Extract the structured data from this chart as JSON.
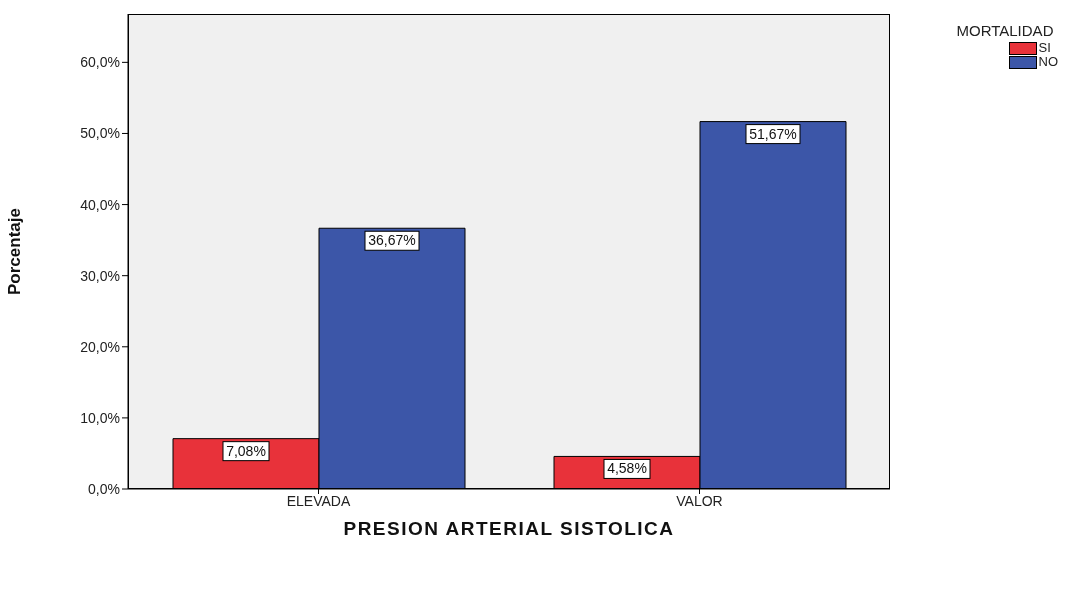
{
  "chart_data": {
    "type": "bar",
    "xlabel": "PRESION ARTERIAL SISTOLICA",
    "ylabel": "Porcentaje",
    "legend_title": "MORTALIDAD",
    "categories": [
      "ELEVADA",
      "VALOR"
    ],
    "series": [
      {
        "name": "SI",
        "color": "#e8323a",
        "values": [
          7.08,
          4.58
        ],
        "value_labels": [
          "7,08%",
          "4,58%"
        ]
      },
      {
        "name": "NO",
        "color": "#3c56a8",
        "values": [
          36.67,
          51.67
        ],
        "value_labels": [
          "36,67%",
          "51,67%"
        ]
      }
    ],
    "ylim": [
      0,
      66.8
    ],
    "yticks": [
      {
        "value": 0,
        "label": "0,0%"
      },
      {
        "value": 10,
        "label": "10,0%"
      },
      {
        "value": 20,
        "label": "20,0%"
      },
      {
        "value": 30,
        "label": "30,0%"
      },
      {
        "value": 40,
        "label": "40,0%"
      },
      {
        "value": 50,
        "label": "50,0%"
      },
      {
        "value": 60,
        "label": "60,0%"
      }
    ],
    "grid": false,
    "legend": "top right"
  }
}
